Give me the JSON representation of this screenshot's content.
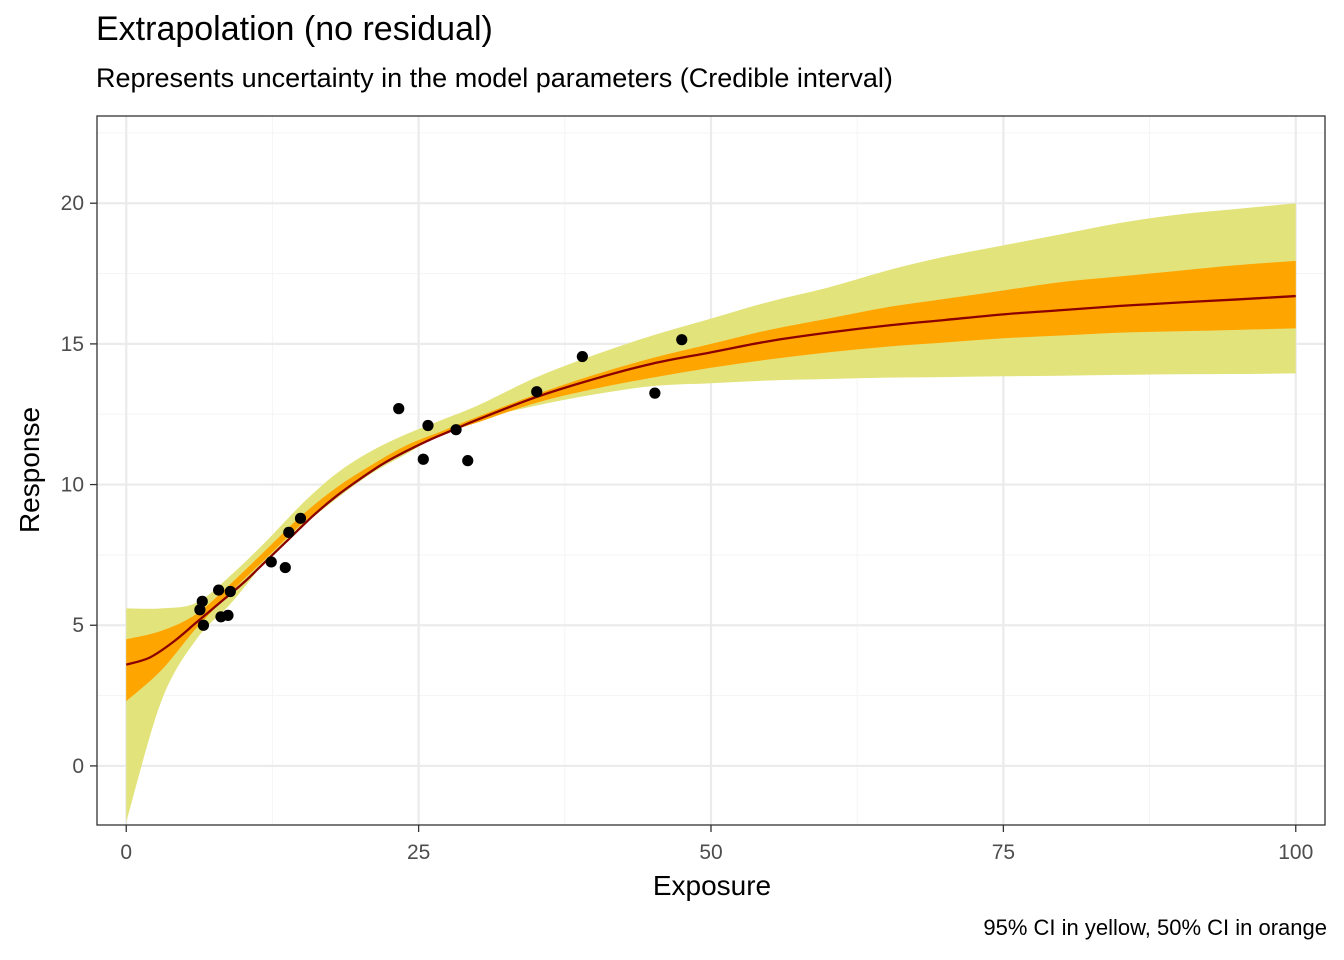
{
  "chart_data": {
    "type": "line",
    "title": "Extrapolation (no residual)",
    "subtitle": "Represents uncertainty in the model parameters (Credible interval)",
    "caption": "95% CI in yellow, 50% CI in orange",
    "xlabel": "Exposure",
    "ylabel": "Response",
    "xlim": [
      -2.5,
      102.5
    ],
    "ylim": [
      -2.1,
      23.1
    ],
    "x_ticks": [
      0,
      25,
      50,
      75,
      100
    ],
    "x_tick_labels": [
      "0",
      "25",
      "50",
      "75",
      "100"
    ],
    "y_ticks": [
      0,
      5,
      10,
      15,
      20
    ],
    "y_tick_labels": [
      "0",
      "5",
      "10",
      "15",
      "20"
    ],
    "grid": true,
    "colors": {
      "ci95_fill": "#e3e37b",
      "ci50_fill": "#ffa500",
      "median_line": "#8b0000",
      "points": "#000000",
      "grid_major": "#ebebeb",
      "grid_minor": "#f5f5f5",
      "panel_border": "#333333"
    },
    "band_x": [
      0,
      3,
      6,
      9,
      12,
      15,
      18,
      21,
      24,
      27,
      30,
      35,
      40,
      45,
      50,
      55,
      60,
      65,
      70,
      75,
      80,
      85,
      90,
      95,
      100
    ],
    "ci95_upper": [
      5.6,
      5.6,
      5.8,
      6.8,
      8.0,
      9.3,
      10.4,
      11.2,
      11.8,
      12.3,
      12.8,
      13.8,
      14.6,
      15.3,
      15.9,
      16.5,
      17.0,
      17.6,
      18.1,
      18.5,
      18.9,
      19.3,
      19.6,
      19.8,
      20.0
    ],
    "ci95_lower": [
      -2.0,
      2.3,
      4.5,
      5.8,
      7.3,
      8.5,
      9.5,
      10.4,
      11.1,
      11.8,
      12.3,
      12.8,
      13.2,
      13.5,
      13.6,
      13.7,
      13.75,
      13.8,
      13.82,
      13.85,
      13.87,
      13.9,
      13.92,
      13.93,
      13.95
    ],
    "ci50_upper": [
      4.5,
      4.8,
      5.4,
      6.5,
      7.7,
      8.9,
      9.9,
      10.7,
      11.4,
      11.9,
      12.4,
      13.2,
      13.9,
      14.5,
      15.0,
      15.5,
      15.9,
      16.3,
      16.6,
      16.9,
      17.2,
      17.4,
      17.6,
      17.8,
      17.95
    ],
    "ci50_lower": [
      2.3,
      3.4,
      4.9,
      6.2,
      7.4,
      8.6,
      9.6,
      10.5,
      11.2,
      11.8,
      12.2,
      12.9,
      13.4,
      13.8,
      14.15,
      14.45,
      14.7,
      14.9,
      15.05,
      15.2,
      15.3,
      15.4,
      15.45,
      15.5,
      15.55
    ],
    "series": [
      {
        "values_x": [
          0,
          2,
          4,
          6,
          8,
          10,
          12,
          14,
          16,
          18,
          20,
          22,
          24,
          26,
          28,
          30,
          35,
          40,
          45,
          50,
          55,
          60,
          65,
          70,
          75,
          80,
          85,
          90,
          95,
          100
        ],
        "values_y": [
          3.6,
          3.85,
          4.4,
          5.1,
          5.8,
          6.5,
          7.3,
          8.1,
          8.9,
          9.6,
          10.2,
          10.75,
          11.2,
          11.6,
          11.95,
          12.3,
          13.1,
          13.75,
          14.3,
          14.7,
          15.1,
          15.4,
          15.65,
          15.85,
          16.05,
          16.2,
          16.35,
          16.47,
          16.58,
          16.7
        ]
      }
    ],
    "points": [
      {
        "x": 6.3,
        "y": 5.55
      },
      {
        "x": 6.5,
        "y": 5.85
      },
      {
        "x": 6.6,
        "y": 5.0
      },
      {
        "x": 7.9,
        "y": 6.25
      },
      {
        "x": 8.1,
        "y": 5.3
      },
      {
        "x": 8.7,
        "y": 5.35
      },
      {
        "x": 8.9,
        "y": 6.2
      },
      {
        "x": 12.4,
        "y": 7.25
      },
      {
        "x": 13.6,
        "y": 7.05
      },
      {
        "x": 13.9,
        "y": 8.3
      },
      {
        "x": 14.9,
        "y": 8.8
      },
      {
        "x": 23.3,
        "y": 12.7
      },
      {
        "x": 25.4,
        "y": 10.9
      },
      {
        "x": 25.8,
        "y": 12.1
      },
      {
        "x": 28.2,
        "y": 11.95
      },
      {
        "x": 29.2,
        "y": 10.85
      },
      {
        "x": 35.1,
        "y": 13.3
      },
      {
        "x": 39.0,
        "y": 14.55
      },
      {
        "x": 45.2,
        "y": 13.25
      },
      {
        "x": 47.5,
        "y": 15.15
      }
    ]
  }
}
